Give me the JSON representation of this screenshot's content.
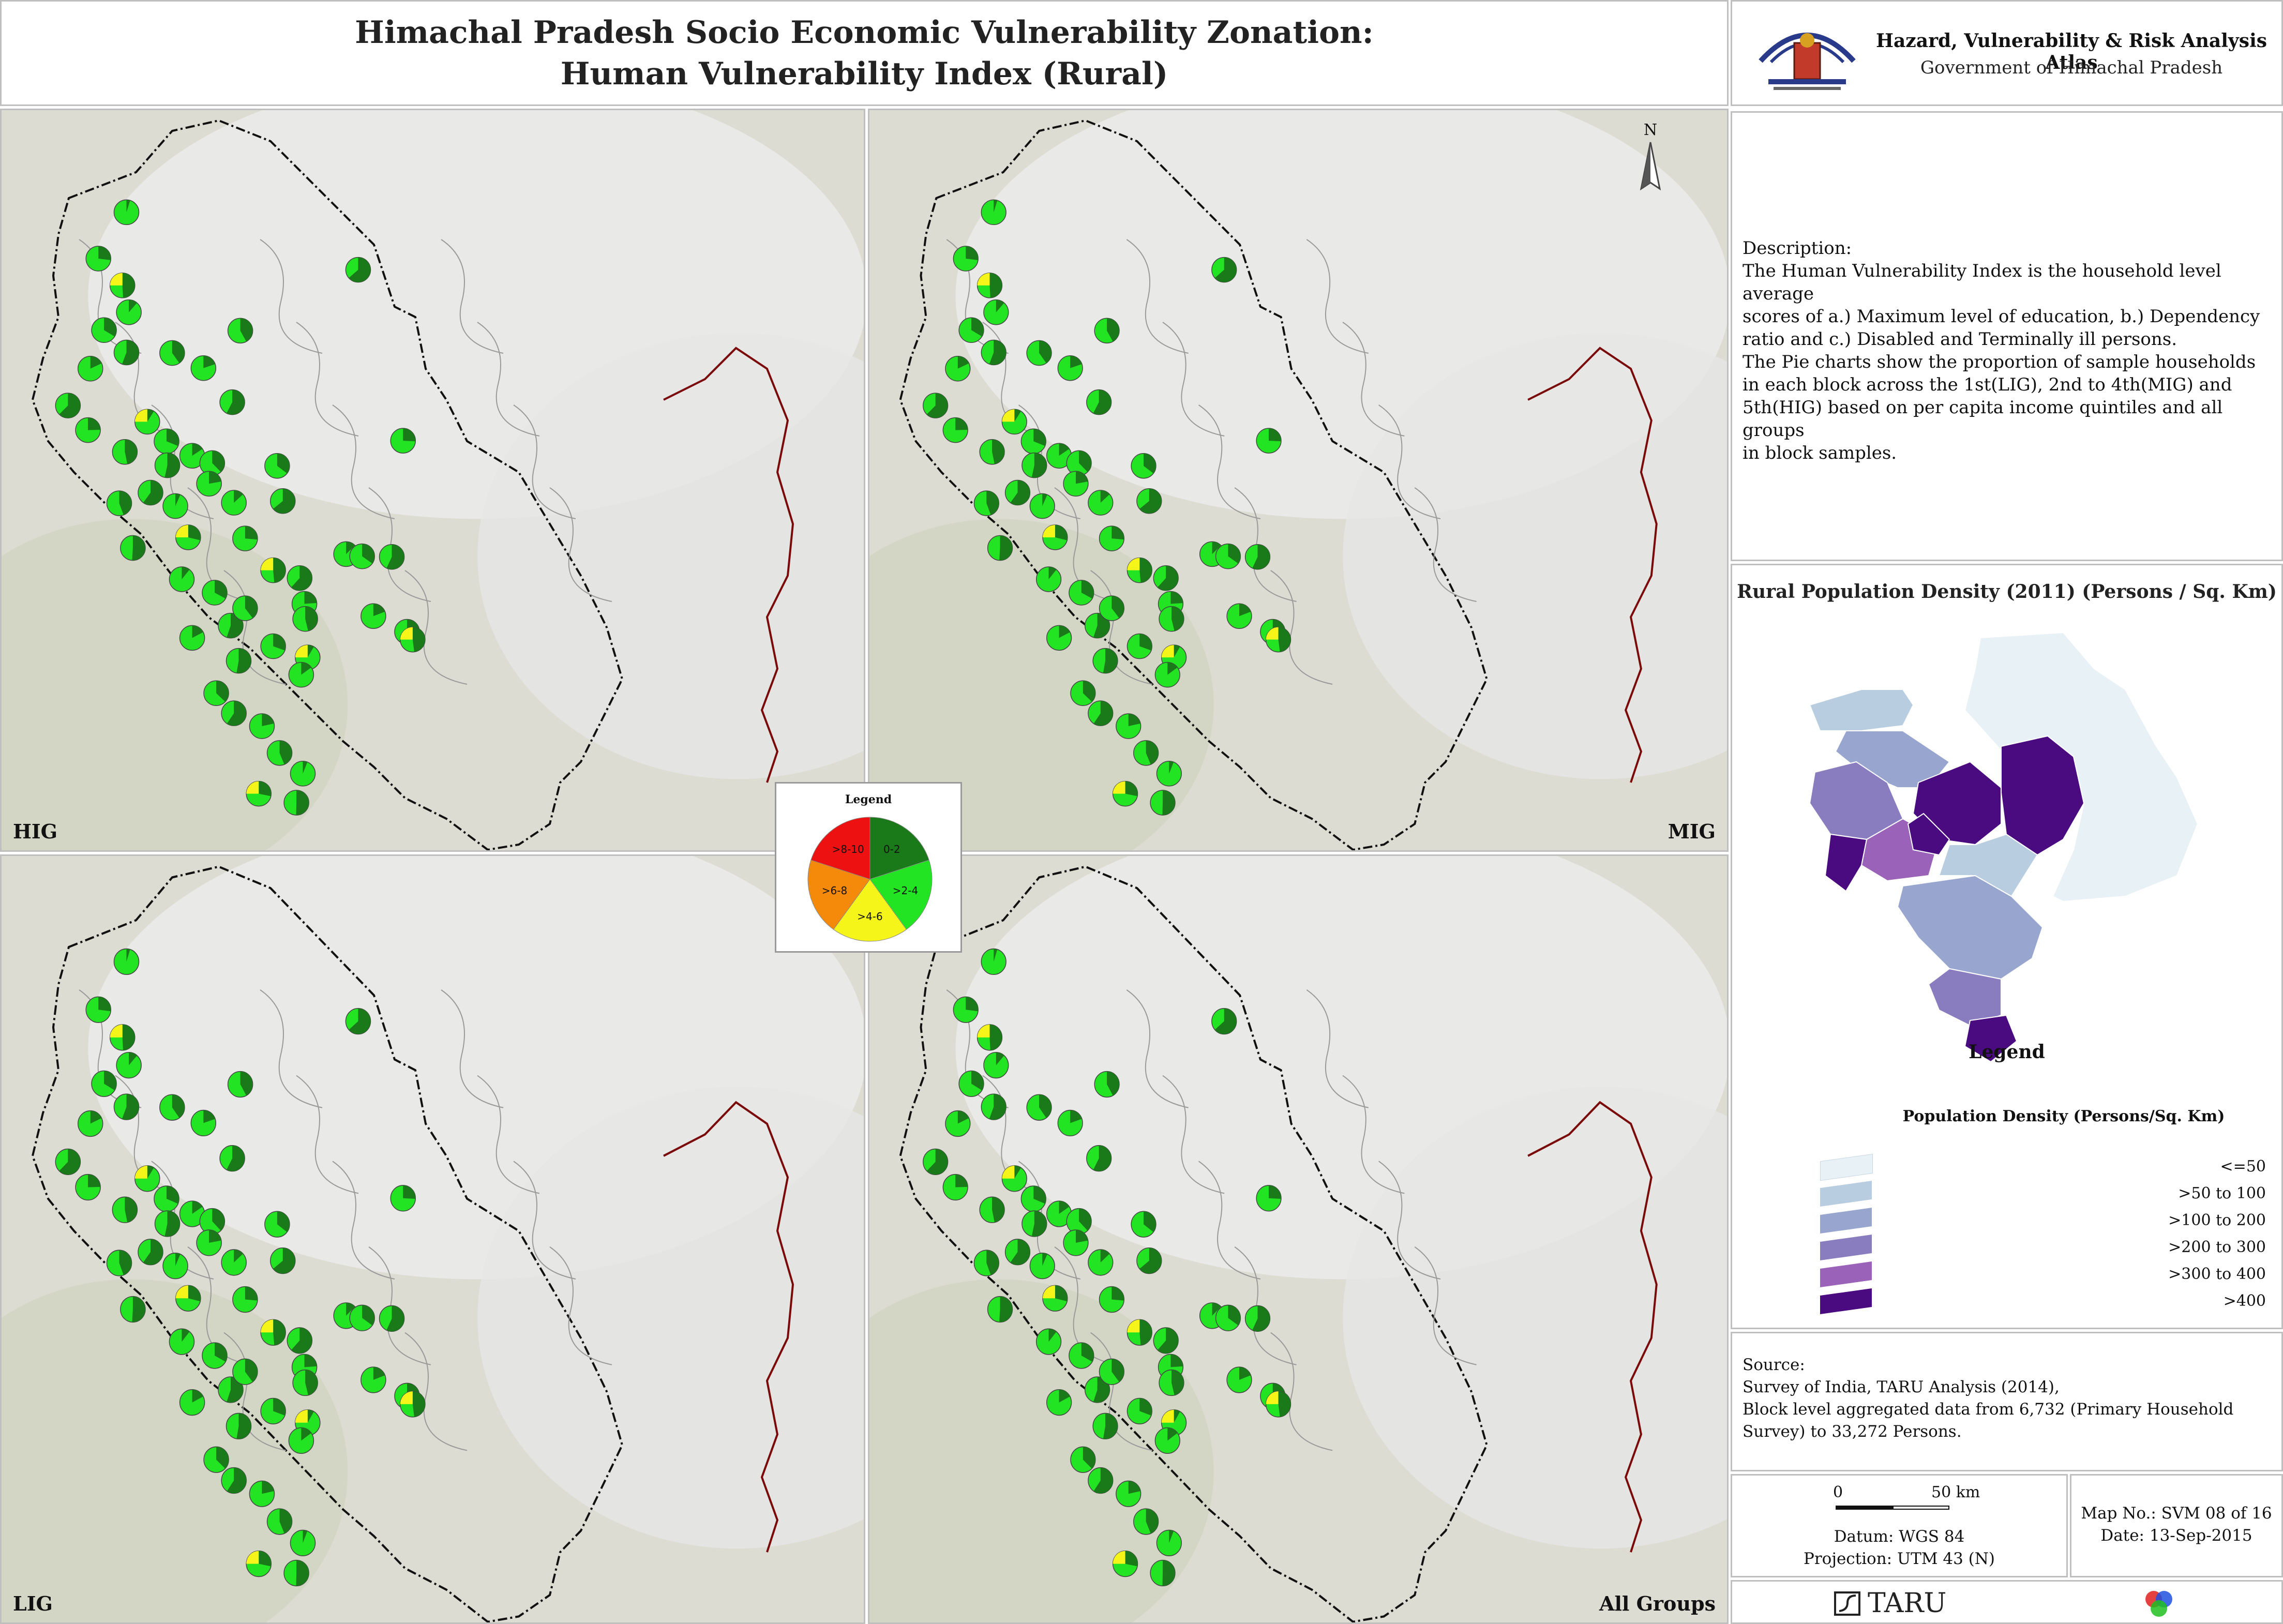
{
  "header": {
    "title_line1": "Himachal Pradesh Socio Economic Vulnerability Zonation:",
    "title_line2": "Human Vulnerability Index (Rural)"
  },
  "org": {
    "title": "Hazard, Vulnerability & Risk Analysis Atlas",
    "subtitle": "Government of Himachal Pradesh",
    "emblem_icon": "state-emblem-icon"
  },
  "description": {
    "heading": "Description:",
    "lines": [
      " The Human Vulnerability Index is the household level average",
      " scores of a.) Maximum level of education, b.) Dependency",
      " ratio and c.) Disabled and Terminally ill persons.",
      " The Pie charts show the proportion of sample households",
      " in each block across the 1st(LIG), 2nd to 4th(MIG) and",
      " 5th(HIG) based on per capita income quintiles and all groups",
      " in block samples."
    ]
  },
  "maps": {
    "north_label": "N",
    "panels": [
      {
        "label": "HIG"
      },
      {
        "label": "MIG"
      },
      {
        "label": "LIG"
      },
      {
        "label": "All Groups"
      }
    ]
  },
  "pie_legend": {
    "title": "Legend",
    "classes": [
      {
        "label": "0-2",
        "color": "#1a7a1a"
      },
      {
        "label": ">2-4",
        "color": "#22e422"
      },
      {
        "label": ">4-6",
        "color": "#f5f51a"
      },
      {
        "label": ">6-8",
        "color": "#f58a0a"
      },
      {
        "label": ">8-10",
        "color": "#ee1111"
      }
    ]
  },
  "density": {
    "title": "Rural Population Density (2011) (Persons / Sq. Km)",
    "legend_heading": "Legend",
    "legend_subheading": "Population Density (Persons/Sq. Km)",
    "classes": [
      {
        "label": "<=50",
        "color": "#e8f1f6"
      },
      {
        "label": ">50 to 100",
        "color": "#b9cde1"
      },
      {
        "label": ">100 to 200",
        "color": "#98a6cf"
      },
      {
        "label": ">200 to 300",
        "color": "#8a7dbf"
      },
      {
        "label": ">300 to 400",
        "color": "#9a62b8"
      },
      {
        "label": ">400",
        "color": "#4a0a80"
      }
    ]
  },
  "source": {
    "heading": "Source:",
    "lines": [
      " Survey of India, TARU Analysis (2014),",
      " Block level aggregated data from 6,732 (Primary Household",
      " Survey) to 33,272 Persons."
    ]
  },
  "scale": {
    "zero": "0",
    "end": "50 km",
    "datum": "Datum: WGS 84",
    "projection": "Projection: UTM 43 (N)"
  },
  "mapinfo": {
    "map_no": "Map No.: SVM 08 of 16",
    "date": "Date: 13-Sep-2015"
  },
  "footer": {
    "taru": "TARU"
  }
}
